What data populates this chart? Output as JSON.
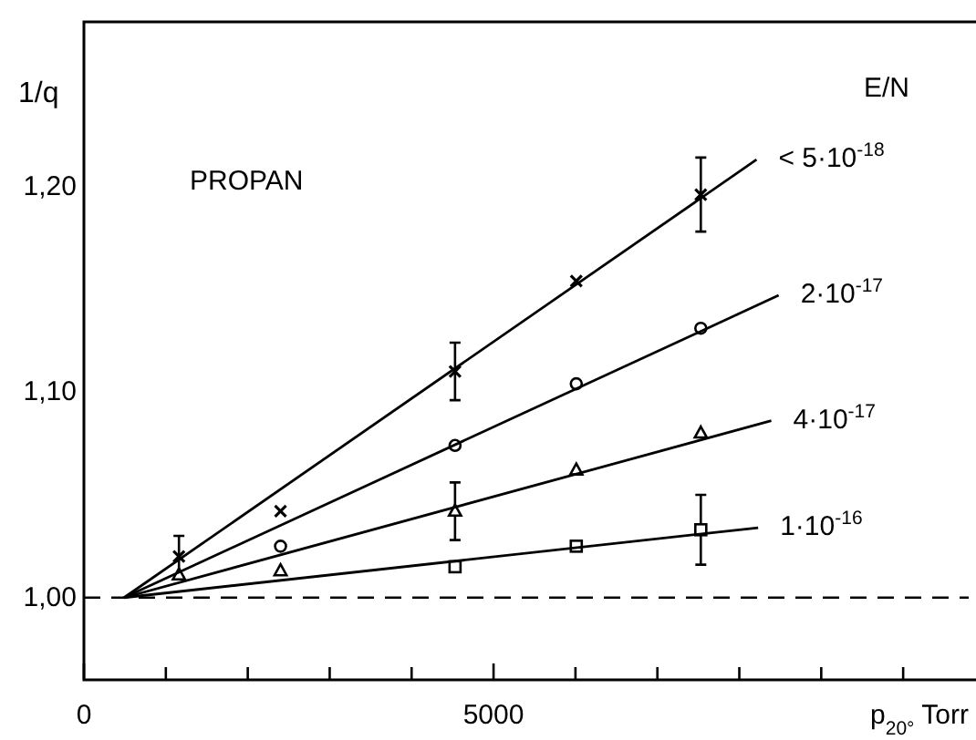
{
  "chart_data": {
    "type": "scatter",
    "ylabel": "1/q",
    "xlabel": "p$_{20°}$ Torr",
    "legend_title": "E/N",
    "annotations": [
      "PROPAN"
    ],
    "xlim": [
      0,
      10800
    ],
    "ylim": [
      0.96,
      1.28
    ],
    "xticks": [
      0,
      {
        "value": 1000,
        "label": null
      },
      {
        "value": 2000,
        "label": null
      },
      {
        "value": 3000,
        "label": null
      },
      {
        "value": 4000,
        "label": null
      },
      5000,
      {
        "value": 6000,
        "label": null
      },
      {
        "value": 7000,
        "label": null
      },
      {
        "value": 8000,
        "label": null
      },
      {
        "value": 9000,
        "label": null
      },
      {
        "value": 10000,
        "label": null
      }
    ],
    "yticks": [
      {
        "value": 1.0,
        "label": "1,00"
      },
      {
        "value": 1.1,
        "label": "1,10"
      },
      {
        "value": 1.2,
        "label": "1,20"
      }
    ],
    "grid": false,
    "legend": false,
    "ref_lines": [
      {
        "axis": "y",
        "value": 1.0,
        "line_style": "dashed",
        "color": "#000000"
      }
    ],
    "series": [
      {
        "marker": "cross",
        "color": "#000000",
        "x": [
          1160,
          2400,
          4530,
          6010,
          7530
        ],
        "values": [
          1.02,
          1.042,
          1.11,
          1.154,
          1.196
        ],
        "errors": [
          0.01,
          null,
          0.014,
          null,
          0.018
        ]
      },
      {
        "marker": "circle",
        "color": "#000000",
        "x": [
          2400,
          4530,
          6010,
          7530
        ],
        "values": [
          1.025,
          1.074,
          1.104,
          1.131
        ]
      },
      {
        "marker": "triangle",
        "color": "#000000",
        "x": [
          1160,
          2400,
          4530,
          6010,
          7530
        ],
        "values": [
          1.011,
          1.013,
          1.042,
          1.062,
          1.08
        ],
        "errors": [
          null,
          null,
          0.014,
          null,
          null
        ]
      },
      {
        "marker": "square",
        "color": "#000000",
        "x": [
          4530,
          6010,
          7530
        ],
        "values": [
          1.015,
          1.025,
          1.033
        ],
        "errors": [
          null,
          null,
          0.017
        ]
      },
      {
        "type": "line",
        "name": "< 5·10$^{-18}$",
        "color": "#000000",
        "x": [
          490,
          8210
        ],
        "values": [
          1.0,
          1.213
        ]
      },
      {
        "type": "line",
        "name": "2·10$^{-17}$",
        "color": "#000000",
        "x": [
          490,
          8480
        ],
        "values": [
          1.0,
          1.147
        ]
      },
      {
        "type": "line",
        "name": "4·10$^{-17}$",
        "color": "#000000",
        "x": [
          490,
          8390
        ],
        "values": [
          1.0,
          1.086
        ]
      },
      {
        "type": "line",
        "name": "1·10$^{-16}$",
        "color": "#000000",
        "x": [
          490,
          8230
        ],
        "values": [
          1.0,
          1.034
        ]
      }
    ]
  }
}
